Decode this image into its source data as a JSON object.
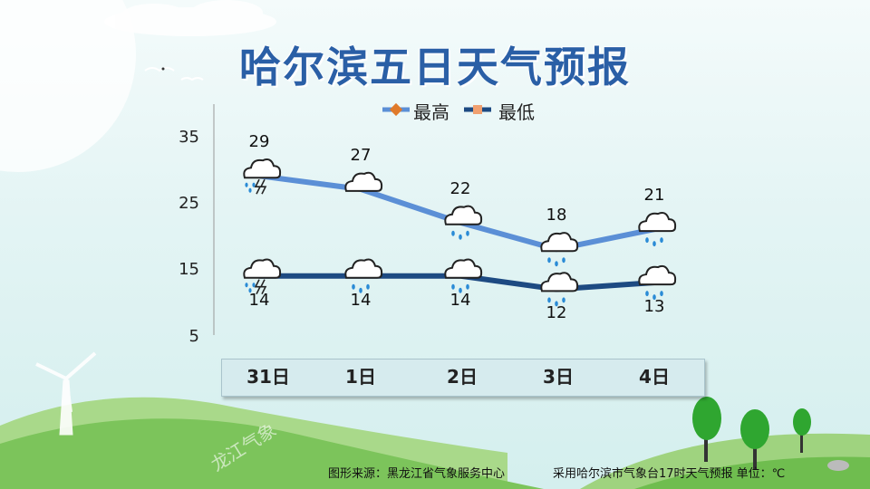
{
  "title": "哈尔滨五日天气预报",
  "legend": {
    "high": "最高",
    "low": "最低"
  },
  "colors": {
    "high_line": "#5b8fd6",
    "low_line": "#1d4a82",
    "high_marker": "#e07a2a",
    "low_marker": "#f0a070",
    "title": "#2a5fa6"
  },
  "watermark": "龙江气象",
  "footer": {
    "source": "图形来源：黑龙江省气象服务中心",
    "note": "采用哈尔滨市气象台17时天气预报 单位：℃"
  },
  "chart_data": {
    "type": "line",
    "categories": [
      "31日",
      "1日",
      "2日",
      "3日",
      "4日"
    ],
    "series": [
      {
        "name": "最高",
        "values": [
          29,
          27,
          22,
          18,
          21
        ],
        "icons": [
          "thunderstorm-icon",
          "cloud-icon",
          "rain-cloud-icon",
          "rain-cloud-icon",
          "rain-cloud-icon"
        ]
      },
      {
        "name": "最低",
        "values": [
          14,
          14,
          14,
          12,
          13
        ],
        "icons": [
          "thunderstorm-icon",
          "rain-cloud-icon",
          "rain-cloud-icon",
          "rain-cloud-icon",
          "rain-cloud-icon"
        ]
      }
    ],
    "yticks": [
      5,
      15,
      25,
      35
    ],
    "ylim": [
      5,
      35
    ],
    "legend_position": "top-center",
    "grid": false
  }
}
